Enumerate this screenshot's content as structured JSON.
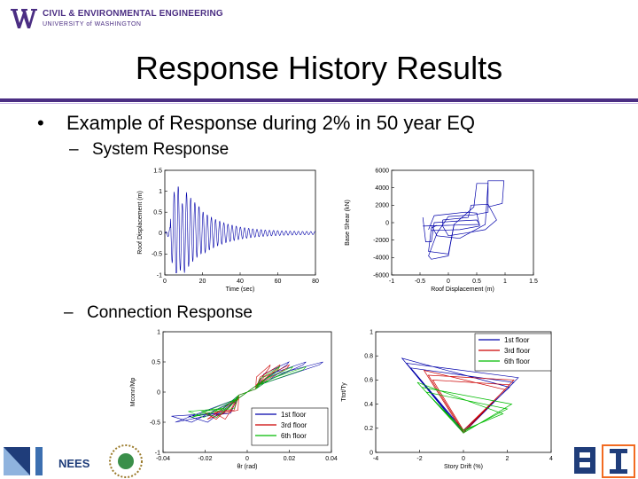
{
  "header": {
    "dept_name": "CIVIL & ENVIRONMENTAL ENGINEERING",
    "university": "UNIVERSITY of WASHINGTON"
  },
  "slide": {
    "title": "Response History Results",
    "bullet1": "Example of Response during 2% in 50 year EQ",
    "sub1": "System Response",
    "sub2": "Connection Response",
    "bullet_dot": "•",
    "dash": "–"
  },
  "footer": {
    "nees_label": "NEES"
  },
  "colors": {
    "uw_purple": "#4b2e83",
    "series_blue": "#0000aa",
    "series_red": "#cc0000",
    "series_green": "#00bb00"
  },
  "chart_data": [
    {
      "type": "line",
      "xlabel": "Time (sec)",
      "ylabel": "Roof Displacement (m)",
      "xlim": [
        0,
        80
      ],
      "ylim": [
        -1,
        1.5
      ],
      "xticks": [
        "0",
        "20",
        "40",
        "60",
        "80"
      ],
      "yticks": [
        "1.5",
        "1",
        "0.5",
        "0",
        "-0.5",
        "-1"
      ],
      "description_series": "damped oscillation, peak ~1.15 near t=8 s, decaying to ~0.02 by t=80 s"
    },
    {
      "type": "line",
      "xlabel": "Roof Displacement (m)",
      "ylabel": "Base Shear (kN)",
      "xlim": [
        -1,
        1.5
      ],
      "ylim": [
        -6000,
        6000
      ],
      "xticks": [
        "-1",
        "-0.5",
        "0",
        "0.5",
        "1",
        "1.5"
      ],
      "yticks": [
        "6000",
        "4000",
        "2000",
        "0",
        "-2000",
        "-4000",
        "-6000"
      ]
    },
    {
      "type": "line",
      "xlabel": "θr (rad)",
      "ylabel": "Mconn/Mp",
      "xlim": [
        -0.04,
        0.04
      ],
      "ylim": [
        -1,
        1
      ],
      "xticks": [
        "-0.04",
        "-0.02",
        "0",
        "0.02",
        "0.04"
      ],
      "yticks": [
        "1",
        "0.5",
        "0",
        "-0.5",
        "-1"
      ],
      "legend": [
        "1st floor",
        "3rd floor",
        "6th floor"
      ],
      "legend_position": "bottom-right"
    },
    {
      "type": "line",
      "xlabel": "Story Drift (%)",
      "ylabel": "Ttot/Ty",
      "xlim": [
        -4,
        4
      ],
      "ylim": [
        0,
        1
      ],
      "xticks": [
        "-4",
        "-2",
        "0",
        "2",
        "4"
      ],
      "yticks": [
        "1",
        "0.8",
        "0.6",
        "0.4",
        "0.2",
        "0"
      ],
      "legend": [
        "1st floor",
        "3rd floor",
        "6th floor"
      ],
      "legend_position": "top-right"
    }
  ]
}
